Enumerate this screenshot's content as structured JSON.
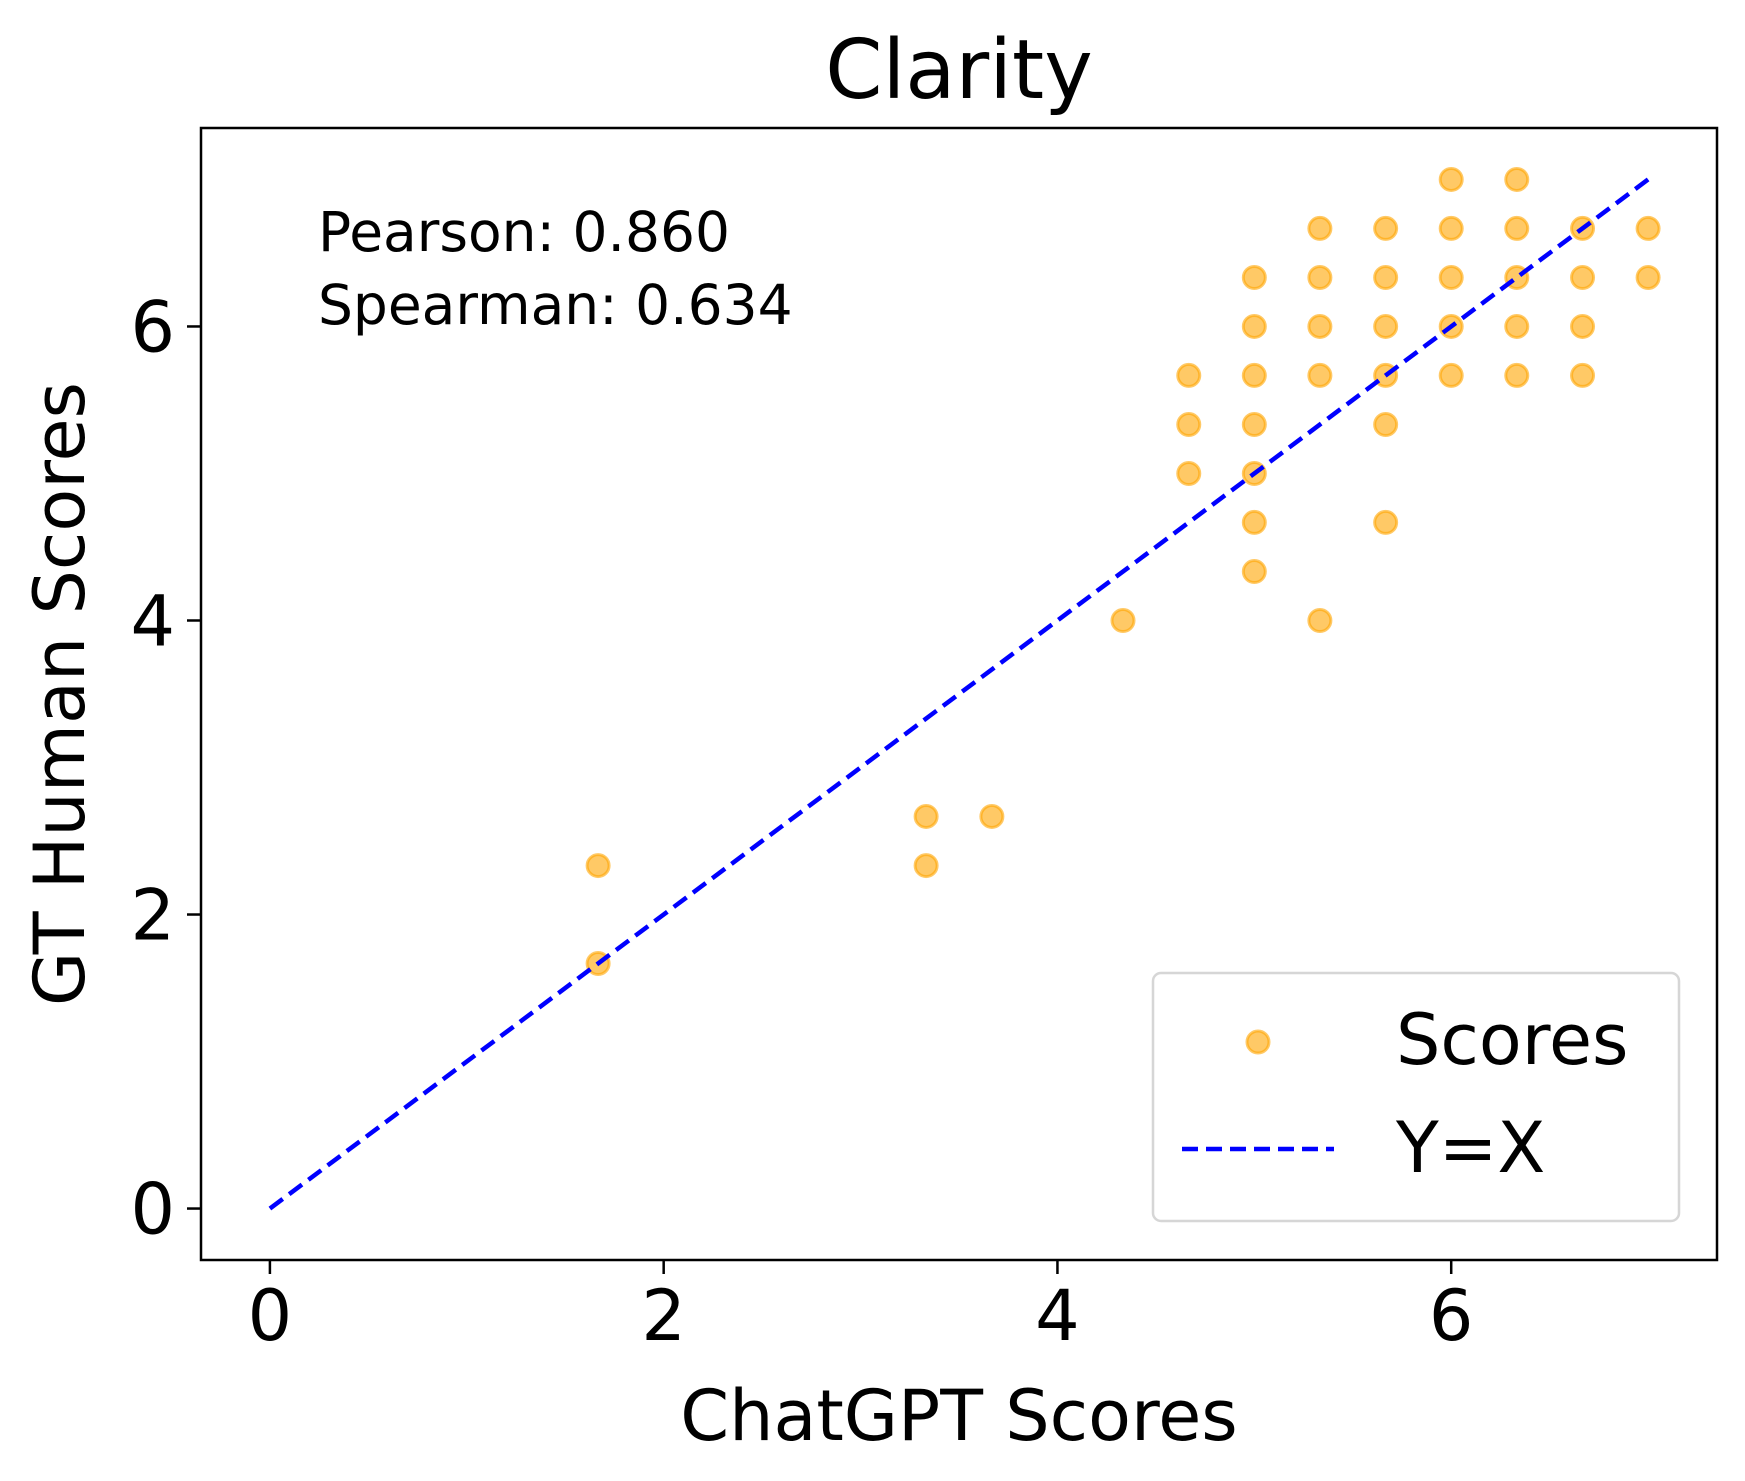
{
  "chart_data": {
    "type": "scatter",
    "title": "Clarity",
    "xlabel": "ChatGPT Scores",
    "ylabel": "GT Human Scores",
    "xlim": [
      -0.35,
      7.35
    ],
    "ylim": [
      -0.35,
      7.35
    ],
    "xticks": [
      0,
      2,
      4,
      6
    ],
    "yticks": [
      0,
      2,
      4,
      6
    ],
    "annotation": [
      "Pearson: 0.860",
      "Spearman: 0.634"
    ],
    "legend_position": "lower-right",
    "series": [
      {
        "name": "Scores",
        "color": "#FFA500",
        "points": [
          [
            1.667,
            1.667
          ],
          [
            1.667,
            2.333
          ],
          [
            3.333,
            2.333
          ],
          [
            3.333,
            2.667
          ],
          [
            3.667,
            2.667
          ],
          [
            4.333,
            4.0
          ],
          [
            4.667,
            5.0
          ],
          [
            4.667,
            5.333
          ],
          [
            4.667,
            5.667
          ],
          [
            5.0,
            4.333
          ],
          [
            5.0,
            4.667
          ],
          [
            5.0,
            5.0
          ],
          [
            5.0,
            5.333
          ],
          [
            5.0,
            5.667
          ],
          [
            5.0,
            6.0
          ],
          [
            5.0,
            6.333
          ],
          [
            5.333,
            4.0
          ],
          [
            5.333,
            5.667
          ],
          [
            5.333,
            6.0
          ],
          [
            5.333,
            6.333
          ],
          [
            5.333,
            6.667
          ],
          [
            5.667,
            4.667
          ],
          [
            5.667,
            5.333
          ],
          [
            5.667,
            5.667
          ],
          [
            5.667,
            6.0
          ],
          [
            5.667,
            6.333
          ],
          [
            5.667,
            6.667
          ],
          [
            6.0,
            5.667
          ],
          [
            6.0,
            6.0
          ],
          [
            6.0,
            6.333
          ],
          [
            6.0,
            6.667
          ],
          [
            6.0,
            7.0
          ],
          [
            6.333,
            5.667
          ],
          [
            6.333,
            6.0
          ],
          [
            6.333,
            6.333
          ],
          [
            6.333,
            6.667
          ],
          [
            6.333,
            7.0
          ],
          [
            6.667,
            5.667
          ],
          [
            6.667,
            6.0
          ],
          [
            6.667,
            6.333
          ],
          [
            6.667,
            6.667
          ],
          [
            7.0,
            6.333
          ],
          [
            7.0,
            6.667
          ]
        ]
      },
      {
        "name": "Y=X",
        "color": "#0000FF",
        "line": [
          [
            0,
            0
          ],
          [
            7,
            7
          ]
        ]
      }
    ]
  }
}
